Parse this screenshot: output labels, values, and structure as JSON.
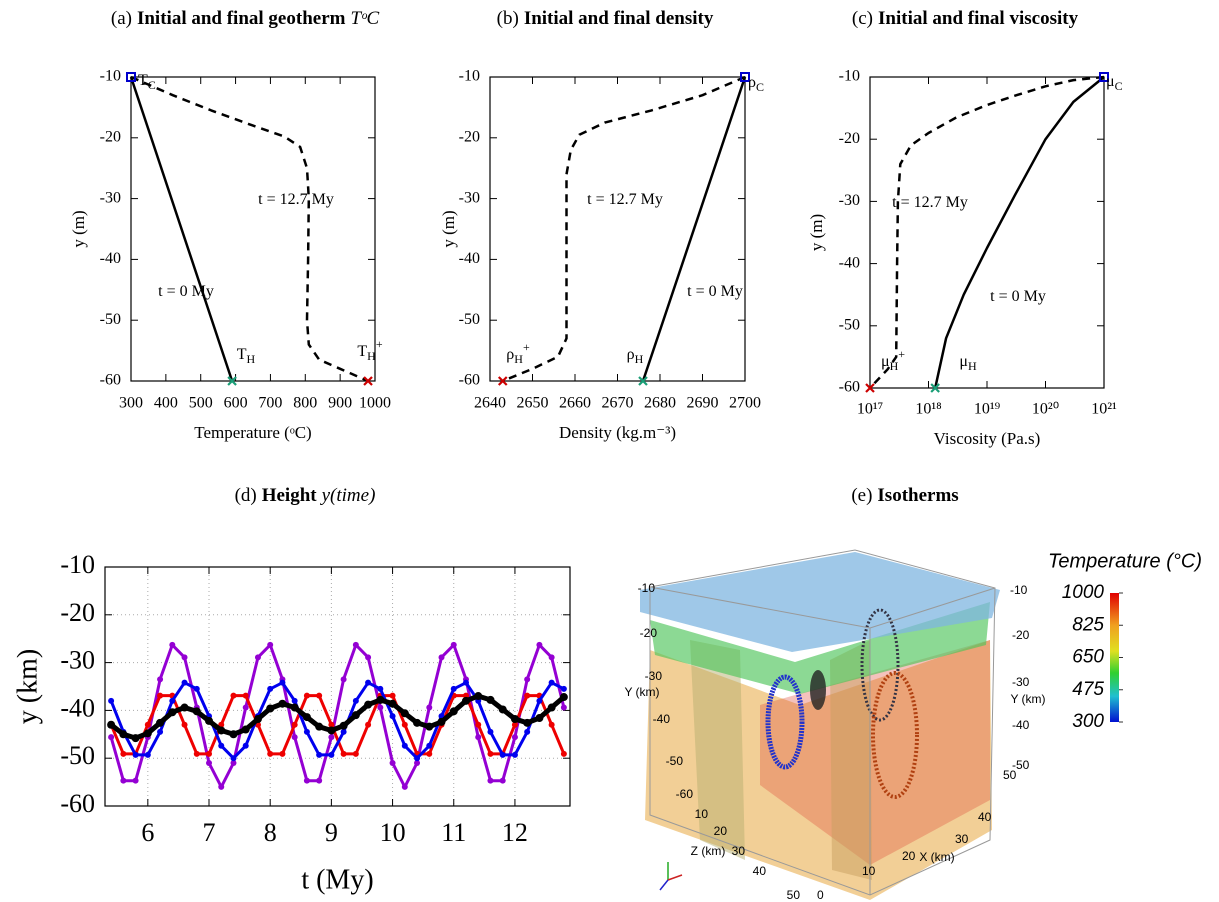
{
  "chart_data": [
    {
      "type": "line",
      "panel": "(a)",
      "title": "Initial and final geotherm",
      "title_math": "TᵒC",
      "x_label": "Temperature (ᵒC)",
      "y_label": "y (m)",
      "xlim": [
        300,
        1000
      ],
      "xticks": [
        300,
        400,
        500,
        600,
        700,
        800,
        900,
        1000
      ],
      "ylim": [
        -60,
        -10
      ],
      "yticks": [
        -10,
        -20,
        -30,
        -40,
        -50,
        -60
      ],
      "series": [
        {
          "style": "solid",
          "color": "#000000",
          "x": [
            300,
            590
          ],
          "values": [
            -10,
            -60
          ]
        },
        {
          "style": "dashed",
          "color": "#000000",
          "x": [
            300,
            420,
            530,
            650,
            740,
            785,
            805,
            810,
            808,
            805,
            810,
            840,
            900,
            980
          ],
          "values": [
            -10,
            -13,
            -15.5,
            -18,
            -19.8,
            -21.5,
            -25,
            -30,
            -40,
            -50,
            -54,
            -56.5,
            -58,
            -60
          ]
        }
      ],
      "points": [
        {
          "x": 300,
          "y": -10,
          "color": "#0000cc",
          "marker": "square"
        },
        {
          "x": 590,
          "y": -60,
          "color": "#1a9e77",
          "marker": "cross"
        },
        {
          "x": 980,
          "y": -60,
          "color": "#cc0000",
          "marker": "cross"
        }
      ],
      "annotations": [
        {
          "text": "t = 12.7 My"
        },
        {
          "text": "t = 0 My"
        },
        {
          "text": "T",
          "sub": "C"
        },
        {
          "text": "T",
          "sub": "H"
        },
        {
          "text": "T",
          "sub": "H",
          "sup": "+"
        }
      ]
    },
    {
      "type": "line",
      "panel": "(b)",
      "title": "Initial and final density",
      "x_label": "Density (kg.m⁻³)",
      "y_label": "y (m)",
      "xlim": [
        2640,
        2700
      ],
      "xticks": [
        2640,
        2650,
        2660,
        2670,
        2680,
        2690,
        2700
      ],
      "ylim": [
        -60,
        -10
      ],
      "yticks": [
        -10,
        -20,
        -30,
        -40,
        -50,
        -60
      ],
      "series": [
        {
          "style": "solid",
          "color": "#000000",
          "x": [
            2676,
            2700
          ],
          "values": [
            -60,
            -10
          ]
        },
        {
          "style": "dashed",
          "color": "#000000",
          "x": [
            2700,
            2690,
            2678,
            2667,
            2661,
            2659,
            2658,
            2658,
            2658,
            2658,
            2656,
            2650,
            2643
          ],
          "values": [
            -10,
            -13,
            -15.5,
            -17.5,
            -19.5,
            -22,
            -26,
            -35,
            -45,
            -53,
            -56,
            -58,
            -60
          ]
        }
      ],
      "points": [
        {
          "x": 2700,
          "y": -10,
          "color": "#0000cc",
          "marker": "square"
        },
        {
          "x": 2676,
          "y": -60,
          "color": "#1a9e77",
          "marker": "cross"
        },
        {
          "x": 2643,
          "y": -60,
          "color": "#cc0000",
          "marker": "cross"
        }
      ],
      "annotations": [
        {
          "text": "t = 12.7 My"
        },
        {
          "text": "t = 0 My"
        },
        {
          "text": "ρ",
          "sub": "C"
        },
        {
          "text": "ρ",
          "sub": "H"
        },
        {
          "text": "ρ",
          "sub": "H",
          "sup": "+"
        }
      ]
    },
    {
      "type": "line",
      "panel": "(c)",
      "title": "Initial and final viscosity",
      "x_label": "Viscosity (Pa.s)",
      "y_label": "y (m)",
      "xscale": "log",
      "xlim": [
        1e+17,
        1e+21
      ],
      "xticks": [
        {
          "value": 1e+17,
          "label": "10¹⁷"
        },
        {
          "value": 1e+18,
          "label": "10¹⁸"
        },
        {
          "value": 1e+19,
          "label": "10¹⁹"
        },
        {
          "value": 1e+20,
          "label": "10²⁰"
        },
        {
          "value": 1e+21,
          "label": "10²¹"
        }
      ],
      "ylim": [
        -60,
        -10
      ],
      "yticks": [
        -10,
        -20,
        -30,
        -40,
        -50,
        -60
      ],
      "series": [
        {
          "style": "solid",
          "color": "#000000",
          "x": [
            1.3e+18,
            2e+18,
            4e+18,
            1e+19,
            3e+19,
            1e+20,
            3e+20,
            1e+21
          ],
          "values": [
            -60,
            -52,
            -45,
            -37.5,
            -29,
            -20,
            -14,
            -10
          ]
        },
        {
          "style": "dashed",
          "color": "#000000",
          "x": [
            1e+21,
            3e+20,
            1e+20,
            3e+19,
            1e+19,
            3e+18,
            1e+18,
            5e+17,
            3.3e+17,
            3e+17,
            2.9e+17,
            2.8e+17,
            2e+17,
            1e+17
          ],
          "values": [
            -10,
            -10.5,
            -11.5,
            -13,
            -14.5,
            -16.5,
            -19,
            -21,
            -24,
            -30,
            -40,
            -55,
            -57,
            -60
          ]
        }
      ],
      "points": [
        {
          "x": 1e+21,
          "y": -10,
          "color": "#0000cc",
          "marker": "square"
        },
        {
          "x": 1.3e+18,
          "y": -60,
          "color": "#1a9e77",
          "marker": "cross"
        },
        {
          "x": 1e+17,
          "y": -60,
          "color": "#cc0000",
          "marker": "cross"
        }
      ],
      "annotations": [
        {
          "text": "t = 12.7 My"
        },
        {
          "text": "t = 0 My"
        },
        {
          "text": "μ",
          "sub": "C"
        },
        {
          "text": "μ",
          "sub": "H"
        },
        {
          "text": "μ",
          "sub": "H",
          "sup": "+"
        }
      ]
    },
    {
      "type": "line",
      "panel": "(d)",
      "title": "Height",
      "title_math": "y(time)",
      "x_label": "t (My)",
      "y_label": "y (km)",
      "grid": true,
      "xlim": [
        5.3,
        12.9
      ],
      "xticks": [
        6,
        7,
        8,
        9,
        10,
        11,
        12
      ],
      "ylim": [
        -60,
        -10
      ],
      "yticks": [
        -10,
        -20,
        -30,
        -40,
        -50,
        -60
      ],
      "x": [
        5.4,
        5.6,
        5.8,
        6.0,
        6.2,
        6.4,
        6.6,
        6.8,
        7.0,
        7.2,
        7.4,
        7.6,
        7.8,
        8.0,
        8.2,
        8.4,
        8.6,
        8.8,
        9.0,
        9.2,
        9.4,
        9.6,
        9.8,
        10.0,
        10.2,
        10.4,
        10.6,
        10.8,
        11.0,
        11.2,
        11.4,
        11.6,
        11.8,
        12.0,
        12.2,
        12.4,
        12.6,
        12.8
      ],
      "series": [
        {
          "style": "dots",
          "color": "#9400d3",
          "values": [
            -45.6,
            -54.7,
            -54.7,
            -45.6,
            -33.5,
            -26.3,
            -28.9,
            -39.4,
            -51,
            -56,
            -51,
            -39.4,
            -28.9,
            -26.3,
            -33.5,
            -45.6,
            -54.7,
            -54.7,
            -45.6,
            -33.5,
            -26.3,
            -28.9,
            -39.4,
            -51,
            -56,
            -51,
            -39.4,
            -28.9,
            -26.3,
            -33.5,
            -45.6,
            -54.7,
            -54.7,
            -45.6,
            -33.5,
            -26.3,
            -28.9,
            -39.4
          ]
        },
        {
          "style": "dots",
          "color": "#ee0000",
          "values": [
            -43,
            -49.1,
            -49.1,
            -43,
            -36.9,
            -36.9,
            -43,
            -49.1,
            -49.1,
            -43,
            -36.9,
            -36.9,
            -43,
            -49.1,
            -49.1,
            -43,
            -36.9,
            -36.9,
            -43,
            -49.1,
            -49.1,
            -43,
            -36.9,
            -36.9,
            -43,
            -49.1,
            -49.1,
            -43,
            -36.9,
            -36.9,
            -43,
            -49.1,
            -49.1,
            -43,
            -36.9,
            -36.9,
            -43,
            -49.1
          ]
        },
        {
          "style": "dots",
          "color": "#0000ee",
          "values": [
            -38,
            -44.5,
            -49.3,
            -49.3,
            -44.5,
            -38,
            -34.2,
            -35.5,
            -41.2,
            -47.4,
            -50,
            -47.4,
            -41.2,
            -35.5,
            -34.2,
            -38,
            -44.5,
            -49.3,
            -49.3,
            -44.5,
            -38,
            -34.2,
            -35.5,
            -41.2,
            -47.4,
            -50,
            -47.4,
            -41.2,
            -35.5,
            -34.2,
            -38,
            -44.5,
            -49.3,
            -49.3,
            -44.5,
            -38,
            -34.2,
            -35.5
          ]
        },
        {
          "style": "dots",
          "color": "#000000",
          "values": [
            -43,
            -45,
            -45.8,
            -44.8,
            -42.6,
            -40.4,
            -39.4,
            -40.2,
            -42.2,
            -44.2,
            -45,
            -44,
            -41.8,
            -39.6,
            -38.6,
            -39.4,
            -41.4,
            -43.4,
            -44.2,
            -43.2,
            -41,
            -38.8,
            -37.8,
            -38.6,
            -40.6,
            -42.6,
            -43.4,
            -42.4,
            -40.2,
            -38,
            -37,
            -37.8,
            -39.8,
            -41.8,
            -42.6,
            -41.6,
            -39.4,
            -37.2
          ]
        }
      ]
    },
    {
      "type": "isosurface",
      "panel": "(e)",
      "title": "Isotherms",
      "colorbar": {
        "title": "Temperature (°C)",
        "ticks": [
          1000,
          825,
          650,
          475,
          300
        ]
      },
      "y_label": "Y (km)",
      "z_label": "Z (km)",
      "x_label": "X (km)",
      "yticks": [
        -10,
        -20,
        -30,
        -40,
        -50,
        -60
      ],
      "y2ticks": [
        -10,
        -20,
        -30,
        -40,
        -50
      ],
      "zticks": [
        10,
        20,
        30,
        40,
        50
      ],
      "xticks": [
        0,
        10,
        20,
        30,
        40,
        50
      ]
    }
  ]
}
